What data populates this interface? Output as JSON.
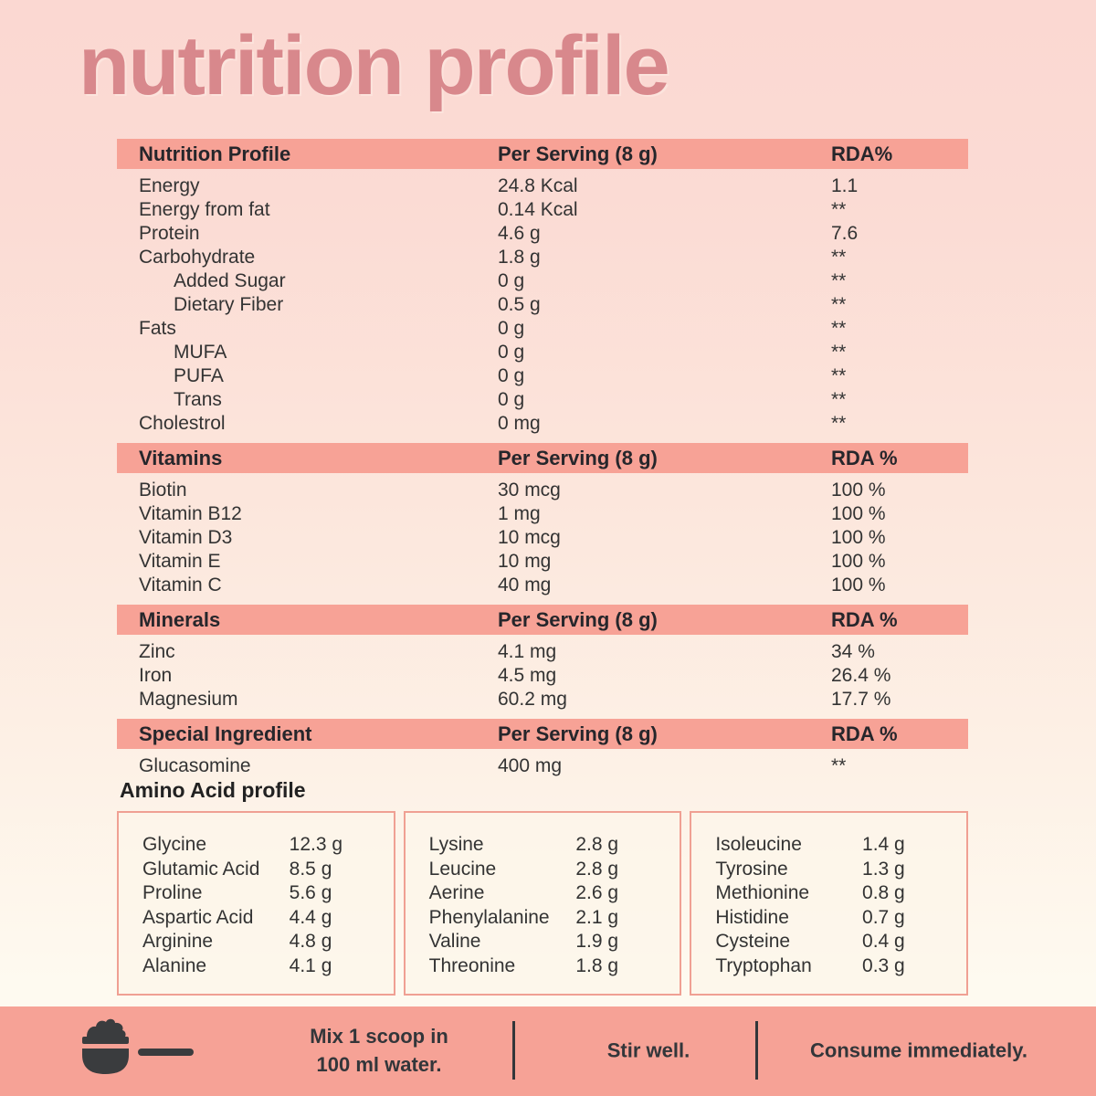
{
  "page": {
    "title": "nutrition profile"
  },
  "colors": {
    "background_top": "#fbd8d2",
    "background_bottom": "#fefbf1",
    "accent_salmon": "#f7a296",
    "title_rose": "#d8888c",
    "text_dark": "#333333",
    "amino_border": "#f0a093",
    "footer_background": "#f6a296",
    "footer_text": "#33363a"
  },
  "table": {
    "sections": [
      {
        "header": {
          "name": "Nutrition Profile",
          "serving": "Per Serving (8 g)",
          "rda": "RDA%"
        },
        "rows": [
          {
            "name": "Energy",
            "serving": "24.8 Kcal",
            "rda": "1.1",
            "indent": false
          },
          {
            "name": "Energy from fat",
            "serving": "0.14 Kcal",
            "rda": "**",
            "indent": false
          },
          {
            "name": "Protein",
            "serving": "4.6 g",
            "rda": "7.6",
            "indent": false
          },
          {
            "name": "Carbohydrate",
            "serving": "1.8 g",
            "rda": "**",
            "indent": false
          },
          {
            "name": "Added Sugar",
            "serving": "0 g",
            "rda": "**",
            "indent": true
          },
          {
            "name": "Dietary Fiber",
            "serving": "0.5 g",
            "rda": "**",
            "indent": true
          },
          {
            "name": "Fats",
            "serving": "0 g",
            "rda": "**",
            "indent": false
          },
          {
            "name": "MUFA",
            "serving": "0 g",
            "rda": "**",
            "indent": true
          },
          {
            "name": "PUFA",
            "serving": "0 g",
            "rda": "**",
            "indent": true
          },
          {
            "name": "Trans",
            "serving": "0 g",
            "rda": "**",
            "indent": true
          },
          {
            "name": "Cholestrol",
            "serving": "0 mg",
            "rda": "**",
            "indent": false
          }
        ]
      },
      {
        "header": {
          "name": "Vitamins",
          "serving": "Per Serving (8 g)",
          "rda": "RDA %"
        },
        "rows": [
          {
            "name": "Biotin",
            "serving": "30 mcg",
            "rda": "100 %",
            "indent": false
          },
          {
            "name": "Vitamin B12",
            "serving": "1 mg",
            "rda": "100 %",
            "indent": false
          },
          {
            "name": "Vitamin D3",
            "serving": "10 mcg",
            "rda": "100 %",
            "indent": false
          },
          {
            "name": "Vitamin E",
            "serving": "10 mg",
            "rda": "100 %",
            "indent": false
          },
          {
            "name": "Vitamin C",
            "serving": "40 mg",
            "rda": "100 %",
            "indent": false
          }
        ]
      },
      {
        "header": {
          "name": "Minerals",
          "serving": "Per Serving (8 g)",
          "rda": "RDA %"
        },
        "rows": [
          {
            "name": "Zinc",
            "serving": "4.1 mg",
            "rda": "34 %",
            "indent": false
          },
          {
            "name": "Iron",
            "serving": "4.5 mg",
            "rda": "26.4 %",
            "indent": false
          },
          {
            "name": "Magnesium",
            "serving": "60.2 mg",
            "rda": "17.7 %",
            "indent": false
          }
        ]
      },
      {
        "header": {
          "name": "Special Ingredient",
          "serving": "Per Serving (8 g)",
          "rda": "RDA %"
        },
        "rows": [
          {
            "name": "Glucasomine",
            "serving": "400 mg",
            "rda": "**",
            "indent": false
          }
        ]
      }
    ]
  },
  "amino": {
    "heading": "Amino Acid profile",
    "columns": [
      [
        {
          "name": "Glycine",
          "value": "12.3 g"
        },
        {
          "name": "Glutamic Acid",
          "value": "8.5 g"
        },
        {
          "name": "Proline",
          "value": "5.6 g"
        },
        {
          "name": "Aspartic Acid",
          "value": "4.4 g"
        },
        {
          "name": "Arginine",
          "value": "4.8 g"
        },
        {
          "name": "Alanine",
          "value": "4.1 g"
        }
      ],
      [
        {
          "name": "Lysine",
          "value": "2.8 g"
        },
        {
          "name": "Leucine",
          "value": "2.8 g"
        },
        {
          "name": "Aerine",
          "value": "2.6 g"
        },
        {
          "name": "Phenylalanine",
          "value": "2.1 g"
        },
        {
          "name": "Valine",
          "value": "1.9 g"
        },
        {
          "name": "Threonine",
          "value": "1.8 g"
        }
      ],
      [
        {
          "name": "Isoleucine",
          "value": "1.4 g"
        },
        {
          "name": "Tyrosine",
          "value": "1.3 g"
        },
        {
          "name": "Methionine",
          "value": "0.8 g"
        },
        {
          "name": "Histidine",
          "value": "0.7 g"
        },
        {
          "name": "Cysteine",
          "value": "0.4 g"
        },
        {
          "name": "Tryptophan",
          "value": "0.3 g"
        }
      ]
    ]
  },
  "footer": {
    "icon": "scoop-icon",
    "mix": "Mix 1 scoop in\n100 ml water.",
    "stir": "Stir well.",
    "consume": "Consume immediately."
  }
}
